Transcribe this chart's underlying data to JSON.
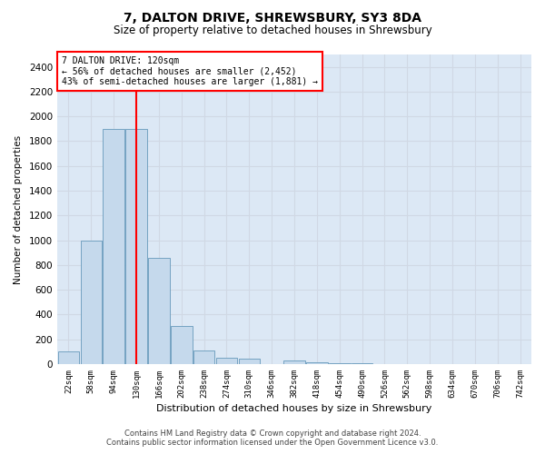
{
  "title1": "7, DALTON DRIVE, SHREWSBURY, SY3 8DA",
  "title2": "Size of property relative to detached houses in Shrewsbury",
  "xlabel": "Distribution of detached houses by size in Shrewsbury",
  "ylabel": "Number of detached properties",
  "annotation_title": "7 DALTON DRIVE: 120sqm",
  "annotation_line1": "← 56% of detached houses are smaller (2,452)",
  "annotation_line2": "43% of semi-detached houses are larger (1,881) →",
  "bin_labels": [
    "22sqm",
    "58sqm",
    "94sqm",
    "130sqm",
    "166sqm",
    "202sqm",
    "238sqm",
    "274sqm",
    "310sqm",
    "346sqm",
    "382sqm",
    "418sqm",
    "454sqm",
    "490sqm",
    "526sqm",
    "562sqm",
    "598sqm",
    "634sqm",
    "670sqm",
    "706sqm",
    "742sqm"
  ],
  "bar_values": [
    100,
    1000,
    1900,
    1900,
    860,
    310,
    110,
    50,
    40,
    0,
    30,
    15,
    5,
    5,
    3,
    2,
    1,
    1,
    1,
    1,
    0
  ],
  "bar_color": "#c5d9ec",
  "bar_edge_color": "#6699bb",
  "vline_color": "red",
  "vline_index": 3.0,
  "ylim": [
    0,
    2500
  ],
  "yticks": [
    0,
    200,
    400,
    600,
    800,
    1000,
    1200,
    1400,
    1600,
    1800,
    2000,
    2200,
    2400
  ],
  "grid_color": "#d0d8e4",
  "bg_color": "#dce8f5",
  "footer1": "Contains HM Land Registry data © Crown copyright and database right 2024.",
  "footer2": "Contains public sector information licensed under the Open Government Licence v3.0."
}
